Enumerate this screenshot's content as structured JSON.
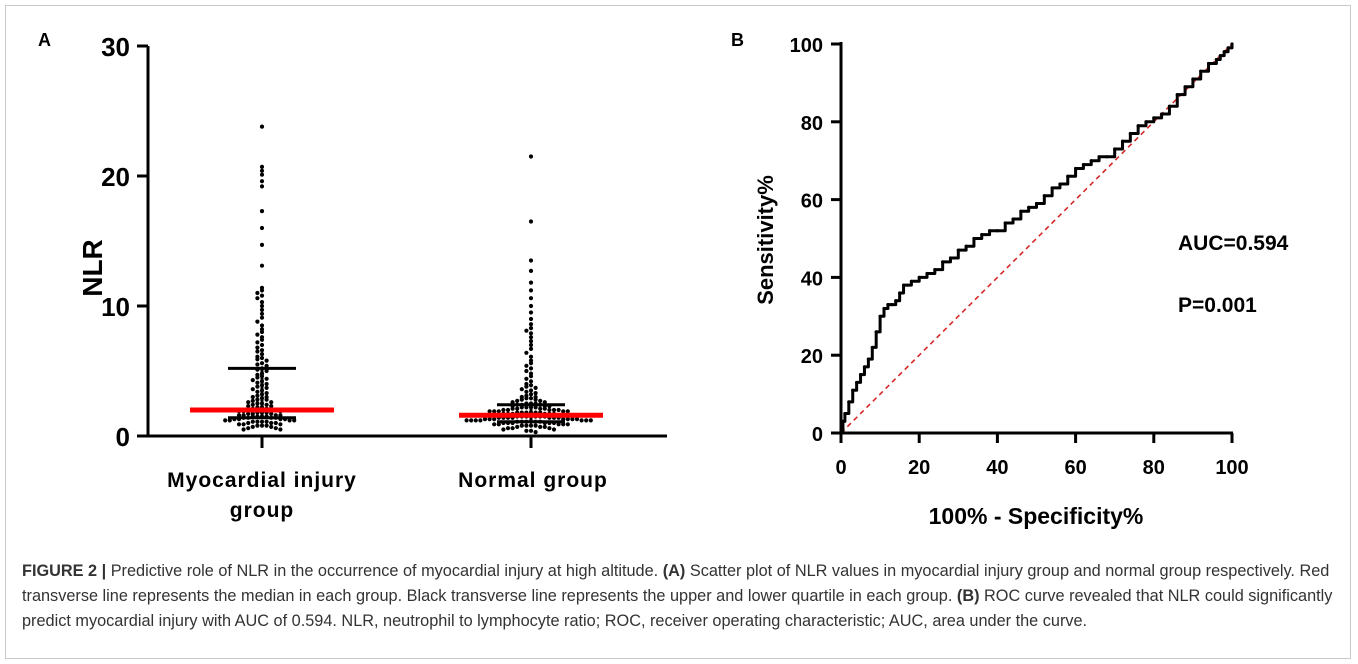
{
  "panels": {
    "a": {
      "letter": "A"
    },
    "b": {
      "letter": "B"
    }
  },
  "chart_data": [
    {
      "type": "scatter",
      "title": "",
      "xlabel": "",
      "ylabel": "NLR",
      "ylim": [
        0,
        30
      ],
      "yticks": [
        "0",
        "10",
        "20",
        "30"
      ],
      "categories": [
        "Myocardial injury group",
        "Normal group"
      ],
      "category_label_lines": [
        [
          "Myocardial injury",
          "group"
        ],
        [
          "Normal group"
        ]
      ],
      "groups": [
        {
          "name": "Myocardial injury group",
          "median": 2.0,
          "q1": 1.4,
          "q3": 5.2,
          "points": [
            23.8,
            20.7,
            20.4,
            20.1,
            19.6,
            19.2,
            17.3,
            16.0,
            14.7,
            13.1,
            11.4,
            11.2,
            11.0,
            10.8,
            10.6,
            10.3,
            10.0,
            9.7,
            9.4,
            9.1,
            8.8,
            8.5,
            8.2,
            8.0,
            7.8,
            7.6,
            7.4,
            7.2,
            7.0,
            6.8,
            6.6,
            6.5,
            6.3,
            6.1,
            6.0,
            5.9,
            5.8,
            5.6,
            5.5,
            5.4,
            5.2,
            5.1,
            5.0,
            4.8,
            4.7,
            4.6,
            4.5,
            4.4,
            4.3,
            4.2,
            4.1,
            4.0,
            3.9,
            3.8,
            3.7,
            3.6,
            3.5,
            3.4,
            3.3,
            3.2,
            3.1,
            3.0,
            3.0,
            2.9,
            2.8,
            2.8,
            2.7,
            2.6,
            2.6,
            2.5,
            2.5,
            2.4,
            2.4,
            2.3,
            2.3,
            2.2,
            2.2,
            2.1,
            2.1,
            2.0,
            2.0,
            2.0,
            1.9,
            1.9,
            1.9,
            1.8,
            1.8,
            1.8,
            1.7,
            1.7,
            1.7,
            1.6,
            1.6,
            1.6,
            1.6,
            1.5,
            1.5,
            1.5,
            1.5,
            1.4,
            1.4,
            1.4,
            1.4,
            1.3,
            1.3,
            1.3,
            1.3,
            1.2,
            1.2,
            1.2,
            1.2,
            1.1,
            1.1,
            1.1,
            1.1,
            1.0,
            1.0,
            1.0,
            0.9,
            0.9,
            0.9,
            0.8,
            0.8,
            0.8,
            0.7,
            0.7,
            0.6,
            0.6,
            0.5,
            0.5
          ]
        },
        {
          "name": "Normal group",
          "median": 1.6,
          "q1": 1.1,
          "q3": 2.4,
          "points": [
            21.5,
            16.5,
            13.5,
            12.7,
            11.8,
            11.2,
            10.6,
            10.0,
            9.5,
            9.0,
            8.6,
            8.3,
            8.1,
            7.9,
            7.6,
            7.3,
            7.0,
            6.7,
            6.4,
            6.1,
            5.8,
            5.6,
            5.4,
            5.2,
            5.0,
            4.8,
            4.6,
            4.4,
            4.2,
            4.0,
            3.9,
            3.8,
            3.7,
            3.6,
            3.5,
            3.4,
            3.3,
            3.2,
            3.1,
            3.0,
            3.0,
            2.9,
            2.9,
            2.8,
            2.8,
            2.7,
            2.7,
            2.6,
            2.6,
            2.5,
            2.5,
            2.5,
            2.4,
            2.4,
            2.4,
            2.3,
            2.3,
            2.3,
            2.2,
            2.2,
            2.2,
            2.2,
            2.1,
            2.1,
            2.1,
            2.1,
            2.0,
            2.0,
            2.0,
            2.0,
            2.0,
            1.9,
            1.9,
            1.9,
            1.9,
            1.9,
            1.8,
            1.8,
            1.8,
            1.8,
            1.8,
            1.8,
            1.7,
            1.7,
            1.7,
            1.7,
            1.7,
            1.7,
            1.6,
            1.6,
            1.6,
            1.6,
            1.6,
            1.6,
            1.6,
            1.5,
            1.5,
            1.5,
            1.5,
            1.5,
            1.5,
            1.5,
            1.4,
            1.4,
            1.4,
            1.4,
            1.4,
            1.4,
            1.4,
            1.3,
            1.3,
            1.3,
            1.3,
            1.3,
            1.3,
            1.3,
            1.2,
            1.2,
            1.2,
            1.2,
            1.2,
            1.2,
            1.2,
            1.1,
            1.1,
            1.1,
            1.1,
            1.1,
            1.1,
            1.0,
            1.0,
            1.0,
            1.0,
            1.0,
            1.0,
            0.9,
            0.9,
            0.9,
            0.9,
            0.9,
            0.8,
            0.8,
            0.8,
            0.8,
            0.7,
            0.7,
            0.7,
            0.6,
            0.6,
            0.6,
            0.5,
            0.5,
            0.4,
            0.4,
            0.3
          ]
        }
      ],
      "colors": {
        "points": "#000000",
        "median": "#ff0000",
        "quartile": "#000000"
      }
    },
    {
      "type": "line",
      "title": "",
      "xlabel": "100% - Specificity%",
      "ylabel": "Sensitivity%",
      "xlim": [
        0,
        100
      ],
      "ylim": [
        0,
        100
      ],
      "xticks": [
        "0",
        "20",
        "40",
        "60",
        "80",
        "100"
      ],
      "yticks": [
        "0",
        "20",
        "40",
        "60",
        "80",
        "100"
      ],
      "annotations": [
        "AUC=0.594",
        "P=0.001"
      ],
      "series": [
        {
          "x": [
            0,
            0.5,
            1,
            2,
            3,
            4,
            5,
            6,
            7,
            8,
            9,
            10,
            11,
            12,
            13,
            14,
            15,
            16,
            17,
            18,
            20,
            22,
            24,
            26,
            28,
            30,
            32,
            34,
            36,
            38,
            40,
            42,
            44,
            46,
            48,
            50,
            52,
            54,
            56,
            58,
            60,
            62,
            64,
            66,
            68,
            70,
            72,
            74,
            76,
            78,
            80,
            82,
            84,
            86,
            88,
            90,
            92,
            94,
            96,
            97,
            98,
            99,
            100
          ],
          "y": [
            0,
            3,
            5,
            8,
            11,
            13,
            15,
            17,
            19,
            22,
            26,
            30,
            32,
            33,
            33,
            34,
            36,
            38,
            38,
            39,
            40,
            41,
            42,
            44,
            45,
            47,
            48,
            50,
            51,
            52,
            52,
            54,
            55,
            57,
            58,
            59,
            61,
            63,
            64,
            66,
            68,
            69,
            70,
            71,
            71,
            73,
            75,
            77,
            79,
            80,
            81,
            82,
            84,
            87,
            89,
            91,
            93,
            95,
            96,
            97,
            98,
            99,
            100
          ],
          "color": "#000000"
        },
        {
          "x": [
            0,
            100
          ],
          "y": [
            0,
            100
          ],
          "color": "#d62728",
          "style": "dashed"
        }
      ]
    }
  ],
  "caption": {
    "label": "FIGURE 2 |",
    "intro": " Predictive role of NLR in the occurrence of myocardial injury at high altitude. ",
    "a_marker": "(A)",
    "a_text": " Scatter plot of NLR values in myocardial injury group and normal group respectively. Red transverse line represents the median in each group. Black transverse line represents the upper and lower quartile in each group. ",
    "b_marker": "(B)",
    "b_text": " ROC curve revealed that NLR could significantly predict myocardial injury with AUC of 0.594. NLR, neutrophil to lymphocyte ratio; ROC, receiver operating characteristic; AUC, area under the curve."
  }
}
